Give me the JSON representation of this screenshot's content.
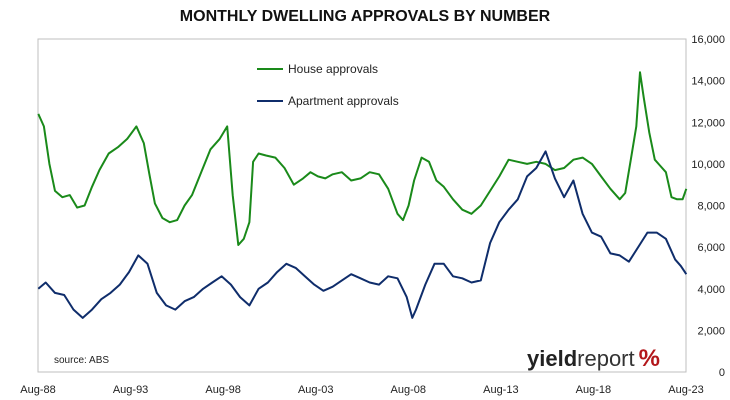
{
  "chart_data": {
    "type": "line",
    "title": "MONTHLY DWELLING APPROVALS BY NUMBER",
    "x_tick_labels": [
      "Aug-88",
      "Aug-93",
      "Aug-98",
      "Aug-03",
      "Aug-08",
      "Aug-13",
      "Aug-18",
      "Aug-23"
    ],
    "x_range": [
      "1988-08",
      "2023-08"
    ],
    "y_tick_labels": [
      "0",
      "2,000",
      "4,000",
      "6,000",
      "8,000",
      "10,000",
      "12,000",
      "14,000",
      "16,000"
    ],
    "ylim": [
      0,
      16000
    ],
    "y_axis_side": "right",
    "grid": "none",
    "legend_position": "top-center",
    "annotation": "source: ABS",
    "series": [
      {
        "name": "House approvals",
        "color": "#1a8a1a",
        "x": [
          1988.6,
          1988.9,
          1989.2,
          1989.5,
          1989.9,
          1990.3,
          1990.7,
          1991.1,
          1991.5,
          1991.9,
          1992.4,
          1992.9,
          1993.4,
          1993.9,
          1994.3,
          1994.6,
          1994.9,
          1995.3,
          1995.7,
          1996.1,
          1996.5,
          1996.9,
          1997.4,
          1997.9,
          1998.4,
          1998.8,
          1999.1,
          1999.4,
          1999.7,
          2000.0,
          2000.2,
          2000.5,
          2000.9,
          2001.4,
          2001.9,
          2002.4,
          2002.9,
          2003.3,
          2003.7,
          2004.1,
          2004.5,
          2005.0,
          2005.5,
          2006.0,
          2006.5,
          2007.0,
          2007.5,
          2008.0,
          2008.3,
          2008.6,
          2008.9,
          2009.3,
          2009.7,
          2010.1,
          2010.5,
          2011.0,
          2011.5,
          2012.0,
          2012.5,
          2013.0,
          2013.5,
          2014.0,
          2014.5,
          2015.0,
          2015.5,
          2016.0,
          2016.5,
          2017.0,
          2017.5,
          2018.0,
          2018.5,
          2019.0,
          2019.5,
          2020.0,
          2020.3,
          2020.6,
          2020.9,
          2021.1,
          2021.3,
          2021.6,
          2021.9,
          2022.2,
          2022.5,
          2022.8,
          2023.1,
          2023.4,
          2023.6
        ],
        "values": [
          12400,
          11800,
          10000,
          8700,
          8400,
          8500,
          7900,
          8000,
          8900,
          9700,
          10500,
          10800,
          11200,
          11800,
          11000,
          9500,
          8100,
          7400,
          7200,
          7300,
          8000,
          8500,
          9600,
          10700,
          11200,
          11800,
          8500,
          6100,
          6400,
          7200,
          10100,
          10500,
          10400,
          10300,
          9800,
          9000,
          9300,
          9600,
          9400,
          9300,
          9500,
          9600,
          9200,
          9300,
          9600,
          9500,
          8800,
          7600,
          7300,
          8000,
          9200,
          10300,
          10100,
          9200,
          8900,
          8300,
          7800,
          7600,
          8000,
          8700,
          9400,
          10200,
          10100,
          10000,
          10100,
          10000,
          9700,
          9800,
          10200,
          10300,
          10000,
          9400,
          8800,
          8300,
          8600,
          10200,
          11800,
          14400,
          13200,
          11500,
          10200,
          9900,
          9600,
          8400,
          8300,
          8300,
          8800
        ]
      },
      {
        "name": "Apartment approvals",
        "color": "#0f2d6b",
        "x": [
          1988.6,
          1989.0,
          1989.5,
          1990.0,
          1990.5,
          1991.0,
          1991.5,
          1992.0,
          1992.5,
          1993.0,
          1993.5,
          1994.0,
          1994.5,
          1995.0,
          1995.5,
          1996.0,
          1996.5,
          1997.0,
          1997.5,
          1998.0,
          1998.5,
          1999.0,
          1999.5,
          2000.0,
          2000.5,
          2001.0,
          2001.5,
          2002.0,
          2002.5,
          2003.0,
          2003.5,
          2004.0,
          2004.5,
          2005.0,
          2005.5,
          2006.0,
          2006.5,
          2007.0,
          2007.5,
          2008.0,
          2008.5,
          2008.8,
          2009.0,
          2009.5,
          2010.0,
          2010.5,
          2011.0,
          2011.5,
          2012.0,
          2012.5,
          2013.0,
          2013.5,
          2014.0,
          2014.5,
          2015.0,
          2015.5,
          2016.0,
          2016.5,
          2017.0,
          2017.5,
          2018.0,
          2018.5,
          2019.0,
          2019.5,
          2020.0,
          2020.5,
          2021.0,
          2021.5,
          2022.0,
          2022.5,
          2023.0,
          2023.3,
          2023.6
        ],
        "values": [
          4000,
          4300,
          3800,
          3700,
          3000,
          2600,
          3000,
          3500,
          3800,
          4200,
          4800,
          5600,
          5200,
          3800,
          3200,
          3000,
          3400,
          3600,
          4000,
          4300,
          4600,
          4200,
          3600,
          3200,
          4000,
          4300,
          4800,
          5200,
          5000,
          4600,
          4200,
          3900,
          4100,
          4400,
          4700,
          4500,
          4300,
          4200,
          4600,
          4500,
          3600,
          2600,
          3000,
          4200,
          5200,
          5200,
          4600,
          4500,
          4300,
          4400,
          6200,
          7200,
          7800,
          8300,
          9400,
          9800,
          10600,
          9300,
          8400,
          9200,
          7600,
          6700,
          6500,
          5700,
          5600,
          5300,
          6000,
          6700,
          6700,
          6400,
          5400,
          5100,
          4700
        ]
      }
    ]
  },
  "brand": {
    "word_bold": "yield",
    "word_light": "report",
    "symbol": "%"
  }
}
